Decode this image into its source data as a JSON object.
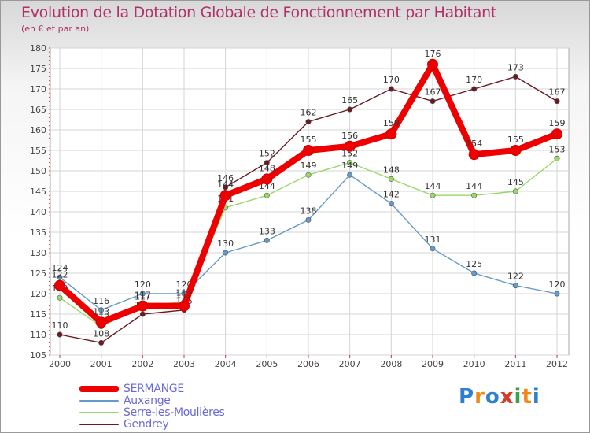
{
  "chart_data": {
    "type": "line",
    "title": "Evolution de la Dotation Globale de Fonctionnement par Habitant",
    "subtitle": "(en € et par an)",
    "x": [
      "2000",
      "2001",
      "2002",
      "2003",
      "2004",
      "2005",
      "2006",
      "2007",
      "2008",
      "2009",
      "2010",
      "2011",
      "2012"
    ],
    "ylim": [
      105,
      180
    ],
    "yticks": [
      105,
      110,
      115,
      120,
      125,
      130,
      135,
      140,
      145,
      150,
      155,
      160,
      165,
      170,
      175,
      180
    ],
    "grid": true,
    "series": [
      {
        "name": "Gendrey",
        "color": "#6b1a22",
        "values": [
          110,
          108,
          115,
          116,
          146,
          152,
          162,
          165,
          170,
          167,
          170,
          173,
          167
        ]
      },
      {
        "name": "Serre-les-Moulières",
        "color": "#99d966",
        "values": [
          119,
          112,
          117,
          118,
          141,
          144,
          149,
          152,
          148,
          144,
          144,
          145,
          153
        ]
      },
      {
        "name": "Auxange",
        "color": "#6699cc",
        "values": [
          124,
          116,
          120,
          120,
          130,
          133,
          138,
          149,
          142,
          131,
          125,
          122,
          120
        ]
      },
      {
        "name": "SERMANGE",
        "color": "#ee0000",
        "values": [
          122,
          113,
          117,
          117,
          144,
          148,
          155,
          156,
          159,
          176,
          154,
          155,
          159
        ]
      }
    ],
    "legend_order": [
      "SERMANGE",
      "Auxange",
      "Serre-les-Moulières",
      "Gendrey"
    ]
  },
  "logo": {
    "letters": [
      "P",
      "r",
      "o",
      "x",
      "i",
      "t",
      "i"
    ],
    "colors": [
      "#2f7fd0",
      "#f0891a",
      "#2f7fd0",
      "#d63a2a",
      "#3aa34a",
      "#f0891a",
      "#2f7fd0"
    ]
  }
}
